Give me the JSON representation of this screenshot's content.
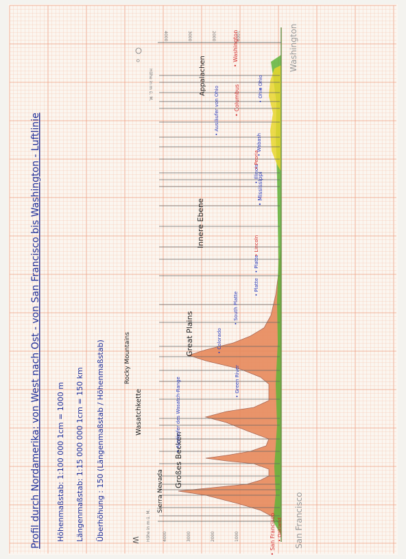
{
  "title": "Profil durch Nordamerika: von West nach Ost - von San Francisco bis Washington - Luftlinie",
  "scale_notes": [
    "Höhenmaßstab: 1:100 000   1cm = 1000 m",
    "Längenmaßstab: 1:15 000 000   1cm = 150 km",
    "Überhöhung : 150 (Längenmaßstab / Höhenmaßstab)"
  ],
  "direction_marks": {
    "west": "W",
    "east": "O"
  },
  "axis_left_label": "Höhe in m ü. M.",
  "axis_right_label": "Höhe in m ü. M.",
  "height_ticks": [
    "4000",
    "3000",
    "2000",
    "1000"
  ],
  "bottom_place": "San Francisco",
  "top_place": "Washington",
  "features": [
    {
      "text": "• San Francisco",
      "color": "#d42a2a"
    },
    {
      "text": "• Oakland",
      "color": "#d42a2a"
    },
    {
      "text": "Sierra Nevada",
      "color": "#222222"
    },
    {
      "text": "Großes Becken",
      "color": "#222222"
    },
    {
      "text": "• Ausläufer des Wasatch-Range",
      "color": "#2a3dbf"
    },
    {
      "text": "Wasatchkette",
      "color": "#222222"
    },
    {
      "text": "• Green River",
      "color": "#2a3dbf"
    },
    {
      "text": "Rocky Mountains",
      "color": "#222222"
    },
    {
      "text": "• Colorado",
      "color": "#2a3dbf"
    },
    {
      "text": "Great Plains",
      "color": "#222222"
    },
    {
      "text": "• South Platte",
      "color": "#2a3dbf"
    },
    {
      "text": "• Platte",
      "color": "#2a3dbf"
    },
    {
      "text": "• Platte",
      "color": "#2a3dbf"
    },
    {
      "text": "• Lincoln",
      "color": "#d42a2a"
    },
    {
      "text": "Innere Ebene",
      "color": "#222222"
    },
    {
      "text": "• Mississippi",
      "color": "#2a3dbf"
    },
    {
      "text": "• Illinois",
      "color": "#2a3dbf"
    },
    {
      "text": "• Peoria",
      "color": "#d42a2a"
    },
    {
      "text": "• Wabash",
      "color": "#2a3dbf"
    },
    {
      "text": "• Ausläufer von Ohio",
      "color": "#2a3dbf"
    },
    {
      "text": "• Columbus",
      "color": "#d42a2a"
    },
    {
      "text": "• Ohio",
      "color": "#2a3dbf"
    },
    {
      "text": "• Ohio",
      "color": "#2a3dbf"
    },
    {
      "text": "Appalachen",
      "color": "#222222"
    },
    {
      "text": "• Washington",
      "color": "#d42a2a"
    }
  ],
  "colors": {
    "grid_minor": "#f6c6b0",
    "grid_major": "#ef9f83",
    "mountain_fill": "#e88a5c",
    "mountain_shade": "#b07868",
    "lowland_green": "#5fb43a",
    "lowland_yellow": "#e7d62e"
  }
}
